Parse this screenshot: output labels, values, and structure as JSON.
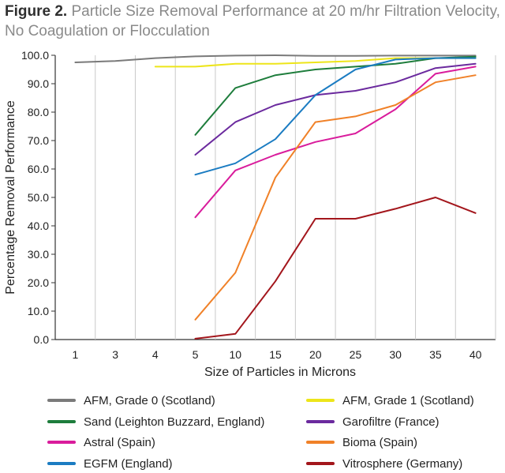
{
  "title": {
    "figure_label": "Figure 2.",
    "text": "Particle Size Removal Performance at 20 m/hr Filtration Velocity, No Coagulation or Flocculation"
  },
  "chart_data": {
    "type": "line",
    "title": "Figure 2. Particle Size Removal Performance at 20 m/hr Filtration Velocity, No Coagulation or Flocculation",
    "xlabel": "Size of Particles in Microns",
    "ylabel": "Percentage Removal Performance",
    "categories": [
      "1",
      "3",
      "4",
      "5",
      "10",
      "15",
      "20",
      "25",
      "30",
      "35",
      "40"
    ],
    "ylim": [
      0,
      100
    ],
    "yticks": [
      "0.0",
      "10.0",
      "20.0",
      "30.0",
      "40.0",
      "50.0",
      "60.0",
      "70.0",
      "80.0",
      "90.0",
      "100.0"
    ],
    "grid": "vertical",
    "legend_position": "bottom",
    "series": [
      {
        "name": "AFM, Grade 0 (Scotland)",
        "color": "#7a7a7a",
        "values": [
          97.5,
          98,
          99,
          99.6,
          99.9,
          100,
          99.8,
          99.8,
          99.9,
          99.9,
          99.9
        ]
      },
      {
        "name": "AFM, Grade 1 (Scotland)",
        "color": "#ede51a",
        "values": [
          null,
          null,
          96,
          96,
          97,
          97,
          97.5,
          98,
          99,
          99,
          99
        ]
      },
      {
        "name": "Sand (Leighton Buzzard, England)",
        "color": "#1e7d3c",
        "values": [
          null,
          null,
          null,
          72,
          88.5,
          93,
          95,
          96,
          97,
          99,
          99.5
        ]
      },
      {
        "name": "Garofiltre (France)",
        "color": "#6b2a9e",
        "values": [
          null,
          null,
          null,
          65,
          76.5,
          82.5,
          86,
          87.5,
          90.5,
          95.5,
          97
        ]
      },
      {
        "name": "Astral (Spain)",
        "color": "#d91c9c",
        "values": [
          null,
          null,
          null,
          43,
          59.5,
          65,
          69.5,
          72.5,
          81,
          93.5,
          96
        ]
      },
      {
        "name": "Bioma (Spain)",
        "color": "#f08128",
        "values": [
          null,
          null,
          null,
          7,
          23.5,
          57,
          76.5,
          78.5,
          82.5,
          90.5,
          93
        ]
      },
      {
        "name": "EGFM (England)",
        "color": "#1b7cc2",
        "values": [
          null,
          null,
          null,
          58,
          62,
          70.5,
          86,
          95,
          98.5,
          99,
          99
        ]
      },
      {
        "name": "Vitrosphere (Germany)",
        "color": "#a3161c",
        "values": [
          null,
          null,
          null,
          0.3,
          2,
          20.5,
          42.5,
          42.5,
          46,
          50,
          44.5
        ]
      }
    ]
  }
}
